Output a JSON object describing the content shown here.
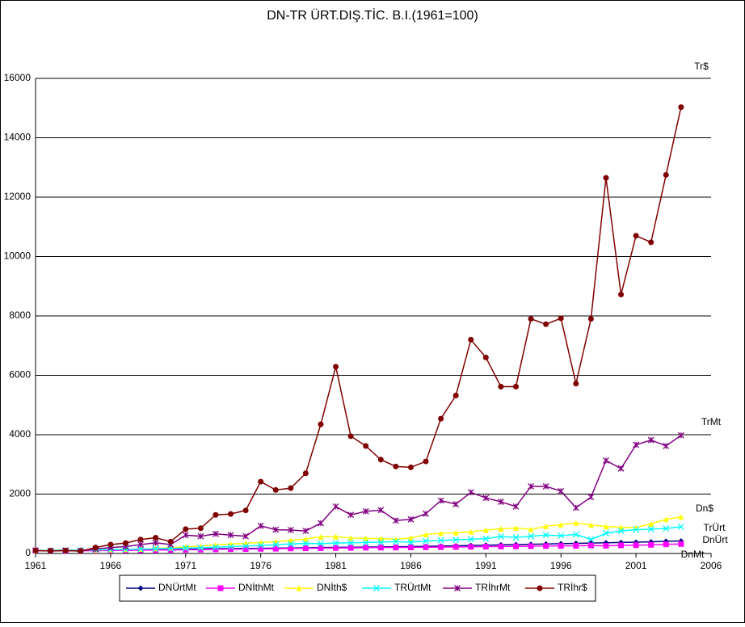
{
  "chart_data": {
    "type": "line",
    "title": "DN-TR ÜRT.DIŞ.TİC. B.I.(1961=100)",
    "x": [
      1961,
      1962,
      1963,
      1964,
      1965,
      1966,
      1967,
      1968,
      1969,
      1970,
      1971,
      1972,
      1973,
      1974,
      1975,
      1976,
      1977,
      1978,
      1979,
      1980,
      1981,
      1982,
      1983,
      1984,
      1985,
      1986,
      1987,
      1988,
      1989,
      1990,
      1991,
      1992,
      1993,
      1994,
      1995,
      1996,
      1997,
      1998,
      1999,
      2000,
      2001,
      2002,
      2003,
      2004
    ],
    "series": [
      {
        "name": "DNÜrtMt",
        "color": "#000080",
        "marker": "diamond",
        "values": [
          100,
          105,
          110,
          115,
          120,
          125,
          130,
          135,
          140,
          145,
          150,
          155,
          160,
          165,
          170,
          175,
          180,
          185,
          190,
          200,
          205,
          210,
          215,
          220,
          225,
          230,
          240,
          250,
          260,
          270,
          280,
          290,
          300,
          310,
          320,
          330,
          340,
          350,
          360,
          370,
          380,
          390,
          410,
          420
        ]
      },
      {
        "name": "DNİthMt",
        "color": "#ff00ff",
        "marker": "square",
        "values": [
          100,
          95,
          90,
          90,
          95,
          100,
          105,
          110,
          115,
          120,
          125,
          130,
          140,
          145,
          150,
          155,
          160,
          170,
          175,
          180,
          185,
          190,
          195,
          200,
          200,
          205,
          210,
          215,
          220,
          225,
          230,
          235,
          240,
          245,
          250,
          255,
          260,
          270,
          260,
          275,
          280,
          290,
          310,
          320
        ]
      },
      {
        "name": "DNİth$",
        "color": "#ffff00",
        "marker": "triangle",
        "values": [
          100,
          105,
          110,
          110,
          120,
          130,
          140,
          150,
          170,
          190,
          220,
          250,
          290,
          320,
          340,
          370,
          400,
          440,
          490,
          560,
          570,
          520,
          510,
          500,
          480,
          520,
          640,
          680,
          700,
          730,
          790,
          830,
          860,
          810,
          920,
          970,
          1030,
          960,
          910,
          880,
          870,
          1000,
          1150,
          1230
        ]
      },
      {
        "name": "TRÜrtMt",
        "color": "#00ffff",
        "marker": "x",
        "values": [
          100,
          100,
          110,
          110,
          120,
          130,
          140,
          150,
          160,
          170,
          180,
          190,
          210,
          230,
          250,
          270,
          300,
          320,
          340,
          330,
          350,
          360,
          370,
          380,
          400,
          380,
          420,
          440,
          460,
          480,
          500,
          570,
          540,
          580,
          620,
          600,
          640,
          470,
          680,
          760,
          800,
          820,
          840,
          900
        ]
      },
      {
        "name": "TRİhrMt",
        "color": "#800080",
        "marker": "star",
        "values": [
          100,
          80,
          100,
          80,
          150,
          200,
          230,
          300,
          360,
          300,
          620,
          580,
          660,
          620,
          580,
          930,
          800,
          790,
          760,
          1020,
          1580,
          1300,
          1420,
          1460,
          1110,
          1150,
          1340,
          1780,
          1660,
          2060,
          1870,
          1740,
          1580,
          2260,
          2260,
          2100,
          1540,
          1900,
          3130,
          2860,
          3660,
          3820,
          3620,
          3980
        ]
      },
      {
        "name": "TRİhr$",
        "color": "#800000",
        "marker": "circle",
        "values": [
          100,
          85,
          100,
          80,
          200,
          300,
          350,
          470,
          530,
          400,
          820,
          850,
          1300,
          1330,
          1450,
          2420,
          2140,
          2200,
          2700,
          4350,
          6290,
          3950,
          3620,
          3160,
          2930,
          2900,
          3100,
          4540,
          5320,
          7200,
          6600,
          5620,
          5620,
          7900,
          7720,
          7920,
          5720,
          7900,
          12650,
          8720,
          10700,
          10480,
          12750,
          15030
        ]
      }
    ],
    "annotations": [
      "Tr$",
      "TrMt",
      "Dn$",
      "TrÜrt",
      "DnÜrt",
      "DnMt"
    ],
    "xlim": [
      1961,
      2006
    ],
    "xticks": [
      1961,
      1966,
      1971,
      1976,
      1981,
      1986,
      1991,
      1996,
      2001,
      2006
    ],
    "ylim": [
      0,
      16000
    ],
    "yticks": [
      0,
      2000,
      4000,
      6000,
      8000,
      10000,
      12000,
      14000,
      16000
    ],
    "grid": true,
    "legend": "bottom"
  }
}
